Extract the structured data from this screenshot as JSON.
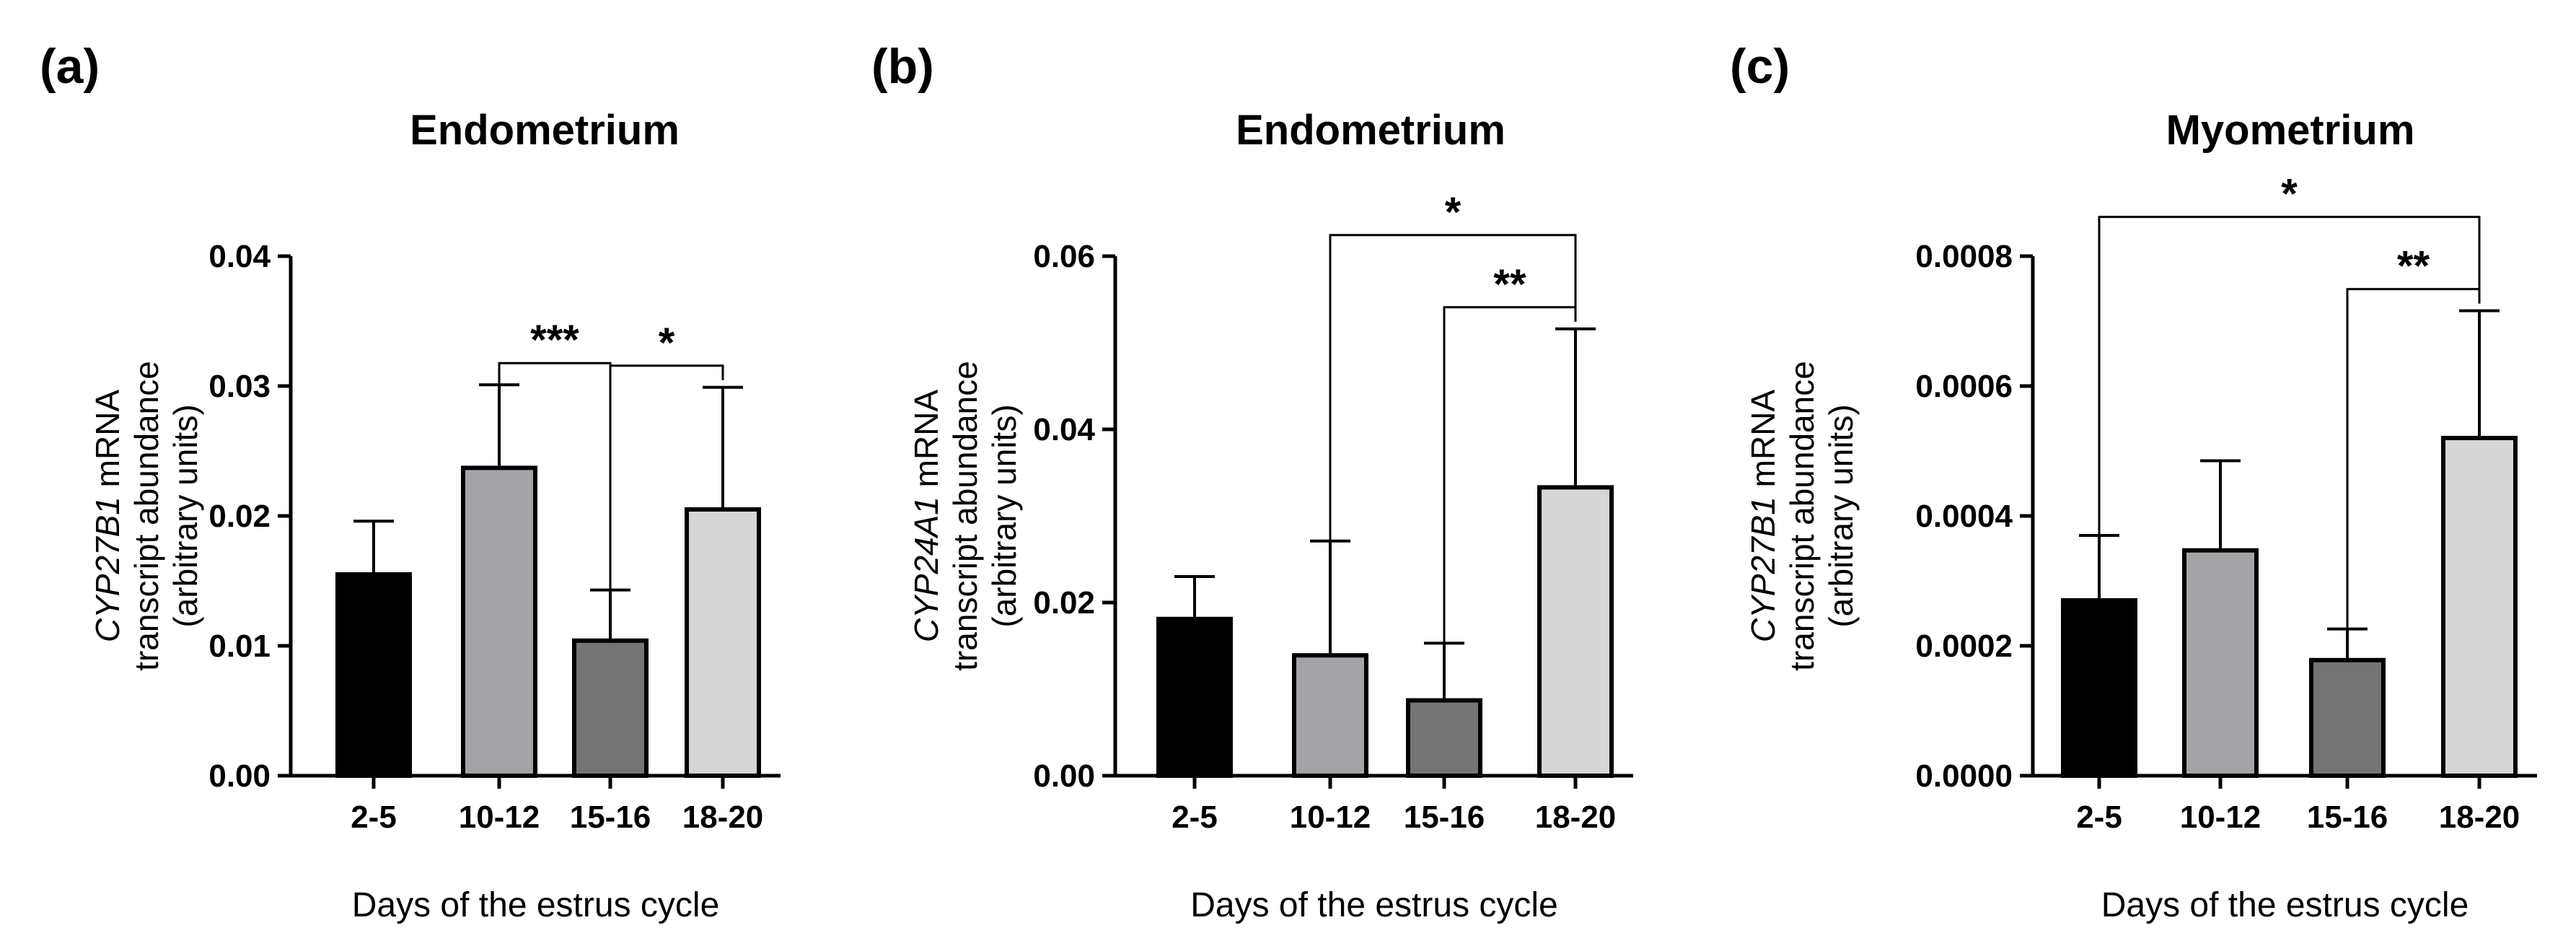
{
  "chart_data": [
    {
      "type": "bar",
      "panel_label": "(a)",
      "title": "Endometrium",
      "ylabel_gene": "CYP27B1",
      "ylabel_lines": [
        " mRNA",
        "transcript abundance",
        "(arbitrary units)"
      ],
      "xlabel": "Days of the estrus cycle",
      "categories": [
        "2-5",
        "10-12",
        "15-16",
        "18-20"
      ],
      "values": [
        0.0155,
        0.0237,
        0.0104,
        0.0205
      ],
      "errors": [
        0.0041,
        0.0064,
        0.0039,
        0.0094
      ],
      "bar_colors": [
        "#000000",
        "#a3a3a8",
        "#747474",
        "#d6d6d6"
      ],
      "ylim": [
        0,
        0.04
      ],
      "yticks": [
        0,
        0.01,
        0.02,
        0.03,
        0.04
      ],
      "ytick_labels": [
        "0.00",
        "0.01",
        "0.02",
        "0.03",
        "0.04"
      ],
      "significance": [
        {
          "from": 1,
          "to": 2,
          "label": "***"
        },
        {
          "from": 2,
          "to": 3,
          "label": "*"
        }
      ]
    },
    {
      "type": "bar",
      "panel_label": "(b)",
      "title": "Endometrium",
      "ylabel_gene": "CYP24A1",
      "ylabel_lines": [
        " mRNA",
        "transcript abundance",
        "(arbitrary units)"
      ],
      "xlabel": "Days of the estrus cycle",
      "categories": [
        "2-5",
        "10-12",
        "15-16",
        "18-20"
      ],
      "values": [
        0.0181,
        0.0139,
        0.0087,
        0.0333
      ],
      "errors": [
        0.0049,
        0.0132,
        0.0066,
        0.0183
      ],
      "bar_colors": [
        "#000000",
        "#a3a3a8",
        "#747474",
        "#d6d6d6"
      ],
      "ylim": [
        0,
        0.06
      ],
      "yticks": [
        0,
        0.02,
        0.04,
        0.06
      ],
      "ytick_labels": [
        "0.00",
        "0.02",
        "0.04",
        "0.06"
      ],
      "significance": [
        {
          "from": 1,
          "to": 3,
          "label": "*"
        },
        {
          "from": 2,
          "to": 3,
          "label": "**"
        }
      ]
    },
    {
      "type": "bar",
      "panel_label": "(c)",
      "title": "Myometrium",
      "ylabel_gene": "CYP27B1",
      "ylabel_lines": [
        " mRNA",
        "transcript abundance",
        "(arbitrary units)"
      ],
      "xlabel": "Days of the estrus cycle",
      "categories": [
        "2-5",
        "10-12",
        "15-16",
        "18-20"
      ],
      "values": [
        0.00027,
        0.000347,
        0.000178,
        0.00052
      ],
      "errors": [
        0.0001,
        0.000138,
        4.8e-05,
        0.000196
      ],
      "bar_colors": [
        "#000000",
        "#a3a3a8",
        "#747474",
        "#d6d6d6"
      ],
      "ylim": [
        0,
        0.0008
      ],
      "yticks": [
        0,
        0.0002,
        0.0004,
        0.0006,
        0.0008
      ],
      "ytick_labels": [
        "0.0000",
        "0.0002",
        "0.0004",
        "0.0006",
        "0.0008"
      ],
      "significance": [
        {
          "from": 0,
          "to": 3,
          "label": "*"
        },
        {
          "from": 2,
          "to": 3,
          "label": "**"
        }
      ]
    }
  ]
}
